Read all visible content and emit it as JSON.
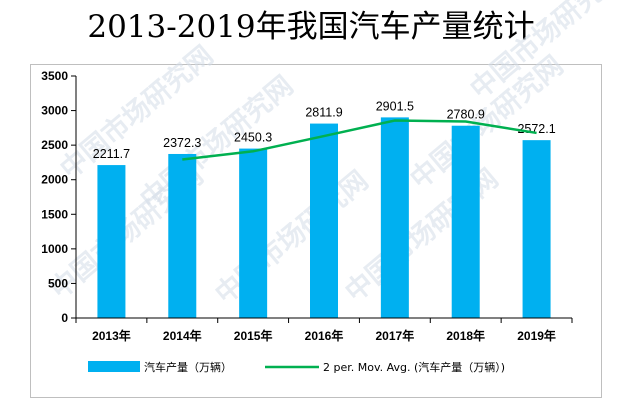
{
  "title": "2013-2019年我国汽车产量统计",
  "watermark": "中国市场研究网",
  "chart_data": {
    "type": "bar",
    "title": "2013-2019年我国汽车产量统计",
    "categories": [
      "2013年",
      "2014年",
      "2015年",
      "2016年",
      "2017年",
      "2018年",
      "2019年"
    ],
    "series": [
      {
        "name": "汽车产量（万辆）",
        "type": "bar",
        "color": "#00b0f0",
        "values": [
          2211.7,
          2372.3,
          2450.3,
          2811.9,
          2901.5,
          2780.9,
          2572.1
        ],
        "labels": [
          "2211.7",
          "2372.3",
          "2450.3",
          "2811.9",
          "2901.5",
          "2780.9",
          "2572.1"
        ]
      },
      {
        "name": "2 per. Mov. Avg. (汽车产量（万辆）)",
        "type": "line",
        "color": "#00b050",
        "values": [
          null,
          2292.0,
          2411.3,
          2631.1,
          2856.7,
          2841.2,
          2676.5
        ]
      }
    ],
    "yticks": [
      "0",
      "500",
      "1000",
      "1500",
      "2000",
      "2500",
      "3000",
      "3500"
    ],
    "ylim": [
      0,
      3500
    ],
    "xlabel": "",
    "ylabel": "",
    "grid": false,
    "legend": "bottom"
  }
}
